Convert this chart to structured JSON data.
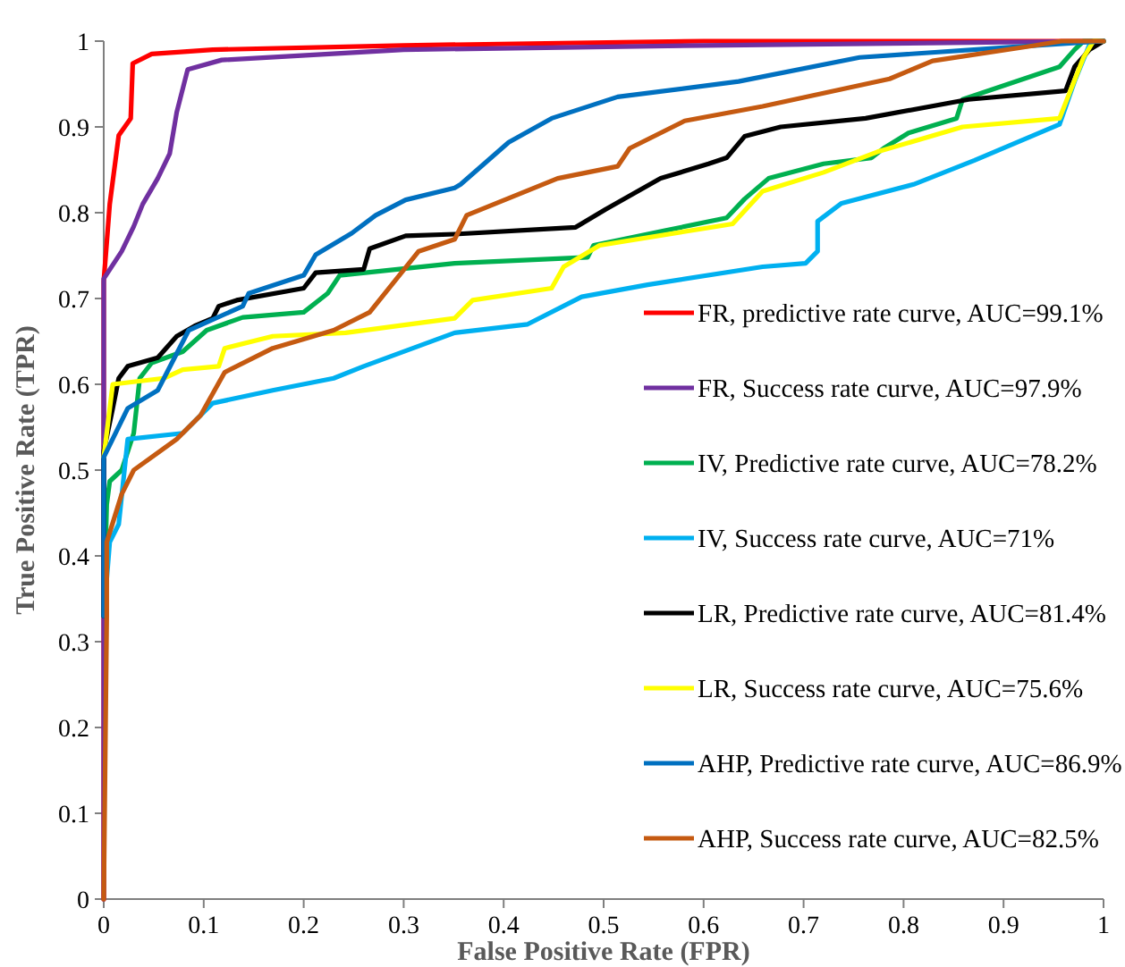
{
  "chart_data": {
    "type": "line",
    "xlabel": "False Positive Rate (FPR)",
    "ylabel": "True Positive Rate (TPR)",
    "xlim": [
      0,
      1
    ],
    "ylim": [
      0,
      1
    ],
    "xticks": [
      0,
      0.1,
      0.2,
      0.3,
      0.4,
      0.5,
      0.6,
      0.7,
      0.8,
      0.9,
      1
    ],
    "yticks": [
      0,
      0.1,
      0.2,
      0.3,
      0.4,
      0.5,
      0.6,
      0.7,
      0.8,
      0.9,
      1
    ],
    "grid": false,
    "legend": "right",
    "marker": "none",
    "line_style": "solid",
    "series": [
      {
        "name": "FR, predictive rate curve, AUC=99.1%",
        "color": "#ff0000",
        "x": [
          0,
          0,
          0.006,
          0.015,
          0.027,
          0.029,
          0.048,
          0.109,
          0.3,
          0.6,
          1
        ],
        "values": [
          0,
          0.72,
          0.81,
          0.89,
          0.91,
          0.974,
          0.985,
          0.99,
          0.995,
          1,
          1
        ]
      },
      {
        "name": "FR, Success rate curve, AUC=97.9%",
        "color": "#7030a0",
        "x": [
          0,
          0,
          0.018,
          0.03,
          0.039,
          0.054,
          0.066,
          0.073,
          0.084,
          0.118,
          0.3,
          0.6,
          1
        ],
        "values": [
          0,
          0.723,
          0.755,
          0.784,
          0.81,
          0.84,
          0.869,
          0.917,
          0.967,
          0.978,
          0.99,
          0.995,
          1
        ]
      },
      {
        "name": "IV, Predictive rate curve, AUC=78.2%",
        "color": "#00b050",
        "x": [
          0,
          0.003,
          0.006,
          0.018,
          0.03,
          0.036,
          0.048,
          0.079,
          0.103,
          0.139,
          0.2,
          0.224,
          0.236,
          0.351,
          0.484,
          0.49,
          0.623,
          0.641,
          0.665,
          0.72,
          0.768,
          0.78,
          0.805,
          0.853,
          0.859,
          0.956,
          0.971,
          0.98,
          1
        ],
        "values": [
          0.33,
          0.46,
          0.487,
          0.5,
          0.543,
          0.607,
          0.625,
          0.638,
          0.663,
          0.678,
          0.684,
          0.706,
          0.727,
          0.741,
          0.748,
          0.762,
          0.794,
          0.816,
          0.84,
          0.857,
          0.864,
          0.875,
          0.893,
          0.91,
          0.932,
          0.97,
          0.99,
          1,
          1
        ]
      },
      {
        "name": "IV, Success rate curve, AUC=71%",
        "color": "#00b0f0",
        "x": [
          0,
          0.006,
          0.015,
          0.024,
          0.079,
          0.109,
          0.169,
          0.23,
          0.26,
          0.351,
          0.424,
          0.478,
          0.544,
          0.659,
          0.702,
          0.714,
          0.714,
          0.738,
          0.81,
          0.871,
          0.956,
          0.971,
          0.986,
          1
        ],
        "values": [
          0.33,
          0.416,
          0.437,
          0.536,
          0.543,
          0.578,
          0.593,
          0.607,
          0.621,
          0.66,
          0.67,
          0.702,
          0.716,
          0.737,
          0.741,
          0.755,
          0.79,
          0.811,
          0.833,
          0.861,
          0.903,
          0.953,
          0.996,
          1
        ]
      },
      {
        "name": "LR, Predictive rate curve, AUC=81.4%",
        "color": "#000000",
        "x": [
          0,
          0,
          0.009,
          0.015,
          0.024,
          0.054,
          0.073,
          0.091,
          0.109,
          0.115,
          0.133,
          0.2,
          0.212,
          0.26,
          0.266,
          0.302,
          0.351,
          0.472,
          0.502,
          0.557,
          0.605,
          0.623,
          0.641,
          0.677,
          0.762,
          0.865,
          0.962,
          0.971,
          0.986,
          1
        ],
        "values": [
          0.33,
          0.522,
          0.572,
          0.607,
          0.621,
          0.631,
          0.656,
          0.668,
          0.677,
          0.691,
          0.698,
          0.712,
          0.73,
          0.734,
          0.758,
          0.773,
          0.775,
          0.783,
          0.804,
          0.84,
          0.857,
          0.864,
          0.889,
          0.9,
          0.91,
          0.932,
          0.942,
          0.97,
          0.99,
          1
        ]
      },
      {
        "name": "LR, Success rate curve, AUC=75.6%",
        "color": "#ffff00",
        "x": [
          0,
          0.009,
          0.06,
          0.079,
          0.115,
          0.121,
          0.169,
          0.242,
          0.351,
          0.369,
          0.448,
          0.46,
          0.496,
          0.629,
          0.659,
          0.72,
          0.774,
          0.859,
          0.956,
          0.98,
          0.99,
          1
        ],
        "values": [
          0.515,
          0.6,
          0.607,
          0.617,
          0.621,
          0.642,
          0.656,
          0.66,
          0.677,
          0.698,
          0.712,
          0.737,
          0.762,
          0.787,
          0.825,
          0.847,
          0.871,
          0.9,
          0.91,
          0.981,
          1,
          1
        ]
      },
      {
        "name": "AHP, Predictive rate curve, AUC=86.9%",
        "color": "#0070c0",
        "x": [
          0,
          0,
          0.024,
          0.054,
          0.085,
          0.139,
          0.145,
          0.2,
          0.212,
          0.248,
          0.272,
          0.302,
          0.351,
          0.357,
          0.405,
          0.448,
          0.514,
          0.635,
          0.756,
          0.932,
          1
        ],
        "values": [
          0.33,
          0.515,
          0.572,
          0.593,
          0.663,
          0.691,
          0.706,
          0.727,
          0.751,
          0.776,
          0.797,
          0.815,
          0.829,
          0.833,
          0.882,
          0.91,
          0.935,
          0.953,
          0.981,
          0.995,
          1
        ]
      },
      {
        "name": "AHP, Success rate curve, AUC=82.5%",
        "color": "#c55a11",
        "x": [
          0,
          0.003,
          0.003,
          0.018,
          0.03,
          0.073,
          0.097,
          0.121,
          0.169,
          0.23,
          0.266,
          0.315,
          0.351,
          0.363,
          0.454,
          0.514,
          0.526,
          0.581,
          0.659,
          0.786,
          0.829,
          0.932,
          0.958,
          1
        ],
        "values": [
          0,
          0.33,
          0.416,
          0.472,
          0.5,
          0.536,
          0.564,
          0.614,
          0.642,
          0.663,
          0.684,
          0.755,
          0.769,
          0.797,
          0.84,
          0.854,
          0.875,
          0.907,
          0.924,
          0.956,
          0.977,
          0.995,
          1,
          1
        ]
      }
    ]
  }
}
